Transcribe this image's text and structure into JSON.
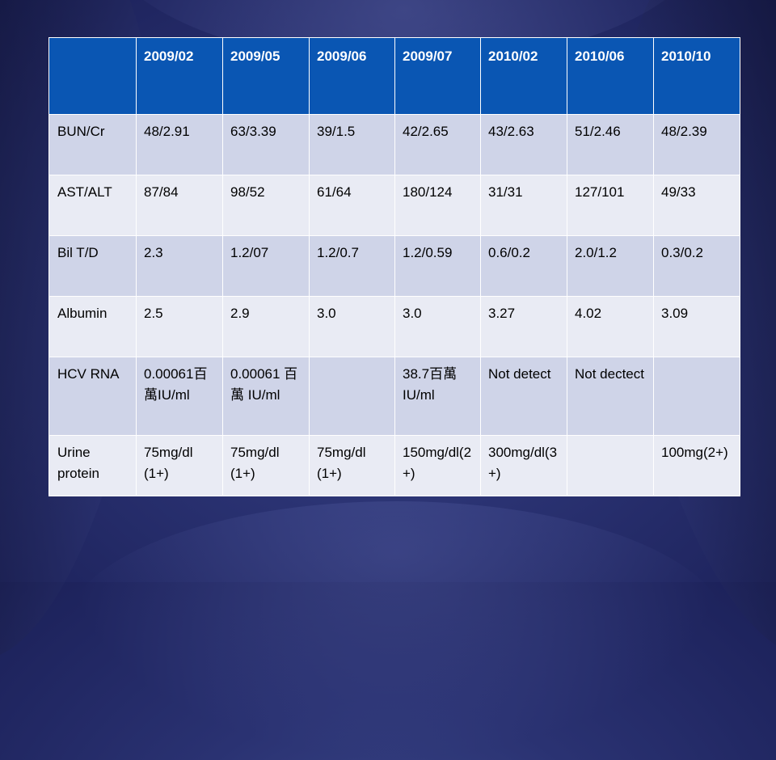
{
  "colors": {
    "header_bg": "#0a56b3",
    "row_odd_bg": "#cfd4e8",
    "row_even_bg": "#e9ebf4",
    "slide_bg": "#2a3272"
  },
  "table": {
    "headers": [
      "",
      "2009/02",
      "2009/05",
      "2009/06",
      "2009/07",
      "2010/02",
      "2010/06",
      "2010/10"
    ],
    "rows": [
      {
        "label": "BUN/Cr",
        "cells": [
          "48/2.91",
          "63/3.39",
          "39/1.5",
          "42/2.65",
          "43/2.63",
          "51/2.46",
          "48/2.39"
        ]
      },
      {
        "label": "AST/ALT",
        "cells": [
          "87/84",
          "98/52",
          "61/64",
          "180/124",
          "31/31",
          "127/101",
          "49/33"
        ]
      },
      {
        "label": "Bil T/D",
        "cells": [
          "2.3",
          "1.2/07",
          "1.2/0.7",
          "1.2/0.59",
          "0.6/0.2",
          "2.0/1.2",
          "0.3/0.2"
        ]
      },
      {
        "label": "Albumin",
        "cells": [
          "2.5",
          "2.9",
          "3.0",
          "3.0",
          "3.27",
          "4.02",
          "3.09"
        ]
      },
      {
        "label": "HCV RNA",
        "cells": [
          "0.00061百萬IU/ml",
          "0.00061 百萬 IU/ml",
          "",
          "38.7百萬IU/ml",
          "Not detect",
          "Not dectect",
          ""
        ]
      },
      {
        "label": "Urine protein",
        "cells": [
          "75mg/dl (1+)",
          "75mg/dl (1+)",
          "75mg/dl (1+)",
          "150mg/dl(2+)",
          "300mg/dl(3+)",
          "",
          "100mg(2+)"
        ]
      }
    ]
  }
}
